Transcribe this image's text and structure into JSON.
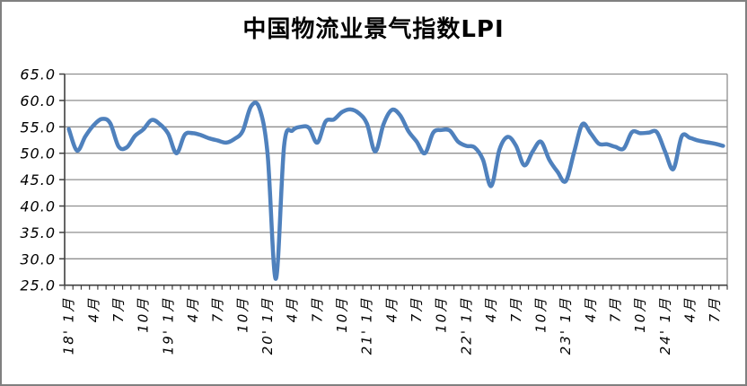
{
  "frame": {
    "background": "#FFFFFF",
    "border_color": "#808080"
  },
  "chart_data": {
    "type": "line",
    "title": "中国物流业景气指数LPI",
    "grid": true,
    "legend": false,
    "categories": [
      "2018-01",
      "2018-02",
      "2018-03",
      "2018-04",
      "2018-05",
      "2018-06",
      "2018-07",
      "2018-08",
      "2018-09",
      "2018-10",
      "2018-11",
      "2018-12",
      "2019-01",
      "2019-02",
      "2019-03",
      "2019-04",
      "2019-05",
      "2019-06",
      "2019-07",
      "2019-08",
      "2019-09",
      "2019-10",
      "2019-11",
      "2019-12",
      "2020-01",
      "2020-02",
      "2020-03",
      "2020-04",
      "2020-05",
      "2020-06",
      "2020-07",
      "2020-08",
      "2020-09",
      "2020-10",
      "2020-11",
      "2020-12",
      "2021-01",
      "2021-02",
      "2021-03",
      "2021-04",
      "2021-05",
      "2021-06",
      "2021-07",
      "2021-08",
      "2021-09",
      "2021-10",
      "2021-11",
      "2021-12",
      "2022-01",
      "2022-02",
      "2022-03",
      "2022-04",
      "2022-05",
      "2022-06",
      "2022-07",
      "2022-08",
      "2022-09",
      "2022-10",
      "2022-11",
      "2022-12",
      "2023-01",
      "2023-02",
      "2023-03",
      "2023-04",
      "2023-05",
      "2023-06",
      "2023-07",
      "2023-08",
      "2023-09",
      "2023-10",
      "2023-11",
      "2023-12",
      "2024-01",
      "2024-02",
      "2024-03",
      "2024-04",
      "2024-05",
      "2024-06",
      "2024-07",
      "2024-08"
    ],
    "series": [
      {
        "name": "LPI",
        "color": "#4F81BD",
        "smooth": true,
        "stroke_width": 4.5,
        "values": [
          54.6,
          50.5,
          53.2,
          55.3,
          56.5,
          55.7,
          51.3,
          51.1,
          53.3,
          54.5,
          56.3,
          55.5,
          53.7,
          50.0,
          53.5,
          53.8,
          53.4,
          52.8,
          52.4,
          52.0,
          52.7,
          54.2,
          58.9,
          58.6,
          49.9,
          26.2,
          51.5,
          54.3,
          55.0,
          54.8,
          52.0,
          56.0,
          56.4,
          57.8,
          58.3,
          57.6,
          55.6,
          50.3,
          55.5,
          58.2,
          57.2,
          54.2,
          52.2,
          50.0,
          53.9,
          54.4,
          54.3,
          52.2,
          51.4,
          51.1,
          48.8,
          43.8,
          50.7,
          53.1,
          51.4,
          47.7,
          50.3,
          52.2,
          48.8,
          46.5,
          44.7,
          50.1,
          55.5,
          53.8,
          51.8,
          51.7,
          51.2,
          50.9,
          54.0,
          53.8,
          53.9,
          54.0,
          50.3,
          47.0,
          53.2,
          52.9,
          52.4,
          52.1,
          51.8,
          51.4
        ]
      }
    ],
    "y_axis": {
      "min": 25,
      "max": 65,
      "step": 5,
      "tick_labels": [
        "65.0",
        "60.0",
        "55.0",
        "50.0",
        "45.0",
        "40.0",
        "35.0",
        "30.0",
        "25.0"
      ]
    },
    "x_axis": {
      "label_every_months": 3,
      "rotation_deg": -90,
      "tick_labels": [
        "18' 1月",
        "4月",
        "7月",
        "10月",
        "19' 1月",
        "4月",
        "7月",
        "10月",
        "20' 1月",
        "4月",
        "7月",
        "10月",
        "21' 1月",
        "4月",
        "7月",
        "10月",
        "22' 1月",
        "4月",
        "7月",
        "10月",
        "23' 1月",
        "4月",
        "7月",
        "10月",
        "24' 1月",
        "4月",
        "7月"
      ]
    },
    "colors": {
      "gridline": "#8F8F8F",
      "axis": "#404040",
      "series": "#4F81BD"
    }
  }
}
